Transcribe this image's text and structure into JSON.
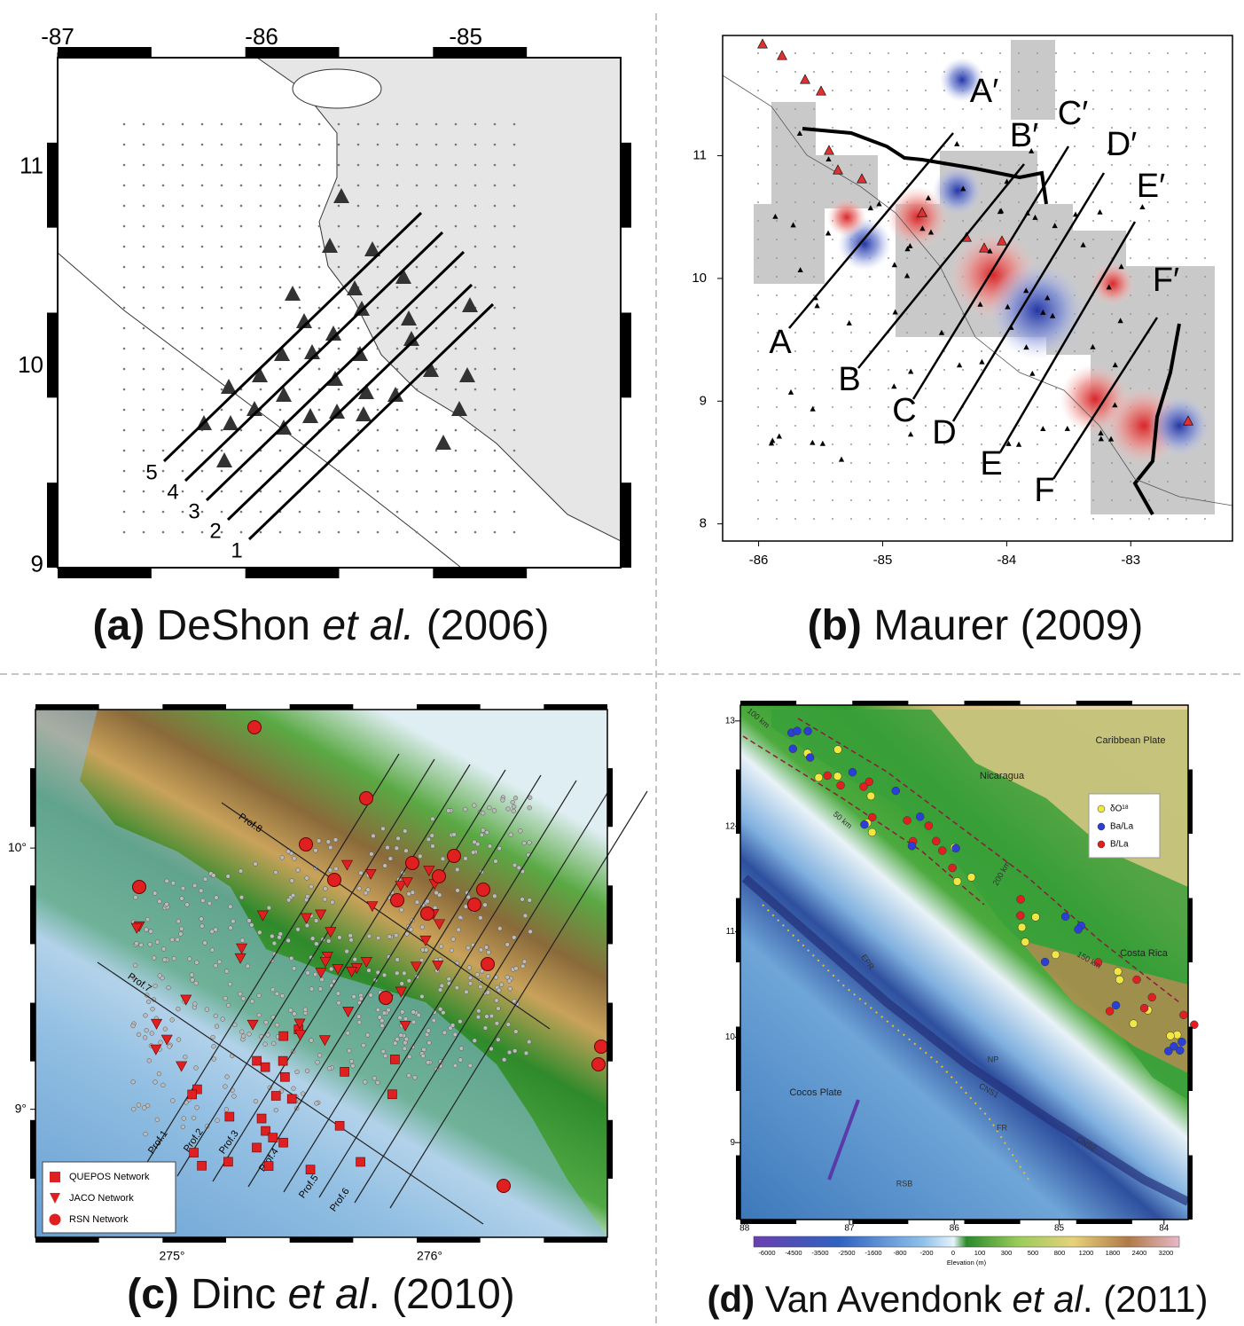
{
  "panels": [
    {
      "caption": [
        {
          "text": "(a)",
          "bold": true
        },
        {
          "text": " DeShon "
        },
        {
          "text": "et al.",
          "italic": true
        },
        {
          "text": " (2006)"
        }
      ],
      "xlim": [
        -87,
        -84.24
      ],
      "ylim": [
        8.99,
        11.55
      ],
      "xticks": [
        -87,
        -86,
        -85
      ],
      "yticks": [
        9,
        10,
        11
      ],
      "labels": [
        "5",
        "4",
        "3",
        "2",
        "1"
      ]
    },
    {
      "caption": [
        {
          "text": "(b)",
          "bold": true
        },
        {
          "text": " Maurer (2009)"
        }
      ],
      "xlim": [
        -86.29,
        -82.18
      ],
      "ylim": [
        7.86,
        11.98
      ],
      "xticks": [
        -86,
        -85,
        -84,
        -83
      ],
      "yticks": [
        8,
        9,
        10,
        11
      ],
      "labels": [
        "A′",
        "B′",
        "C′",
        "D′",
        "E′",
        "F′",
        "A",
        "B",
        "C",
        "D",
        "E",
        "F"
      ]
    },
    {
      "caption": [
        {
          "text": "(c)",
          "bold": true
        },
        {
          "text": " Dinc "
        },
        {
          "text": "et al",
          "italic": true
        },
        {
          "text": ". (2010)"
        }
      ],
      "xlim": [
        274.47,
        276.69
      ],
      "ylim": [
        8.51,
        10.53
      ],
      "xticks": [
        {
          "value": 275,
          "label": "275°"
        },
        {
          "value": 276,
          "label": "276°"
        }
      ],
      "yticks": [
        {
          "value": 9,
          "label": "9°"
        },
        {
          "value": 10,
          "label": "10°"
        }
      ],
      "labels": [
        "Prof.1",
        "Prof.2",
        "Prof.3",
        "Prof.4",
        "Prof.5",
        "Prof.6",
        "Prof.7",
        "Prof.8"
      ],
      "legend": [
        "QUEPOS Network",
        "JACO Network",
        "RSN Network"
      ]
    },
    {
      "caption": [
        {
          "text": "(d)",
          "bold": true
        },
        {
          "text": " Van Avendonk "
        },
        {
          "text": "et al",
          "italic": true
        },
        {
          "text": ". (2011)"
        }
      ],
      "xlim": [
        88.04,
        83.77
      ],
      "ylim": [
        8.27,
        13.15
      ],
      "xticks": [
        88,
        87,
        86,
        85,
        84
      ],
      "yticks": [
        9,
        10,
        11,
        12,
        13
      ],
      "labels": [
        "Caribbean Plate",
        "Nicaragua",
        "Costa Rica",
        "Cocos Plate",
        "EPR",
        "CNS1",
        "CNS2",
        "FR",
        "RSB",
        "NP",
        "100 km",
        "50 km",
        "150 km",
        "200 km"
      ],
      "legend": [
        "δO¹⁸",
        "Ba/La",
        "B/La"
      ],
      "colorbar": [
        -6000,
        -4500,
        -3500,
        -2500,
        -1600,
        -800,
        -200,
        0,
        100,
        300,
        500,
        800,
        1200,
        1800,
        2400,
        3200
      ],
      "colorbar_title": "Elevation (m)"
    }
  ]
}
